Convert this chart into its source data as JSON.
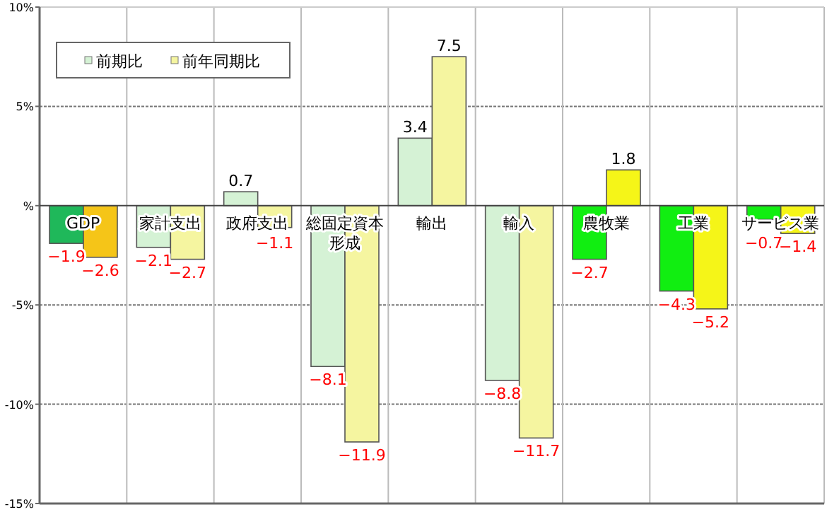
{
  "chart_data": {
    "type": "bar",
    "categories": [
      "GDP",
      "家計支出",
      "政府支出",
      "総固定資本形成",
      "輸出",
      "輸入",
      "農牧業",
      "工業",
      "サービス業"
    ],
    "series": [
      {
        "name": "前期比",
        "color": "#d5f2d5",
        "colors": [
          "#1fb85a",
          "#d5f2d5",
          "#d5f2d5",
          "#d5f2d5",
          "#d5f2d5",
          "#d5f2d5",
          "#11ee11",
          "#11ee11",
          "#11ee11"
        ],
        "values": [
          -1.9,
          -2.1,
          0.7,
          -8.1,
          3.4,
          -8.8,
          -2.7,
          -4.3,
          -0.7
        ],
        "value_labels": [
          "−1.9",
          "−2.1",
          "0.7",
          "−8.1",
          "3.4",
          "−8.8",
          "−2.7",
          "−4.3",
          "−0.7"
        ]
      },
      {
        "name": "前年同期比",
        "color": "#f5f5a0",
        "colors": [
          "#f5c518",
          "#f5f5a0",
          "#f5f5a0",
          "#f5f5a0",
          "#f5f5a0",
          "#f5f5a0",
          "#f5f518",
          "#f5f518",
          "#f5f518"
        ],
        "values": [
          -2.6,
          -2.7,
          -1.1,
          -11.9,
          7.5,
          -11.7,
          1.8,
          -5.2,
          -1.4
        ],
        "value_labels": [
          "−2.6",
          "−2.7",
          "−1.1",
          "−11.9",
          "7.5",
          "−11.7",
          "1.8",
          "−5.2",
          "−1.4"
        ]
      }
    ],
    "ylim": [
      -15,
      10
    ],
    "yticks": [
      {
        "value": -15,
        "label": "-15%"
      },
      {
        "value": -10,
        "label": "-10%"
      },
      {
        "value": -5,
        "label": "-5%"
      },
      {
        "value": 0,
        "label": "%"
      },
      {
        "value": 5,
        "label": "5%"
      },
      {
        "value": 10,
        "label": "10%"
      }
    ],
    "grid": true,
    "legend": "top left"
  }
}
